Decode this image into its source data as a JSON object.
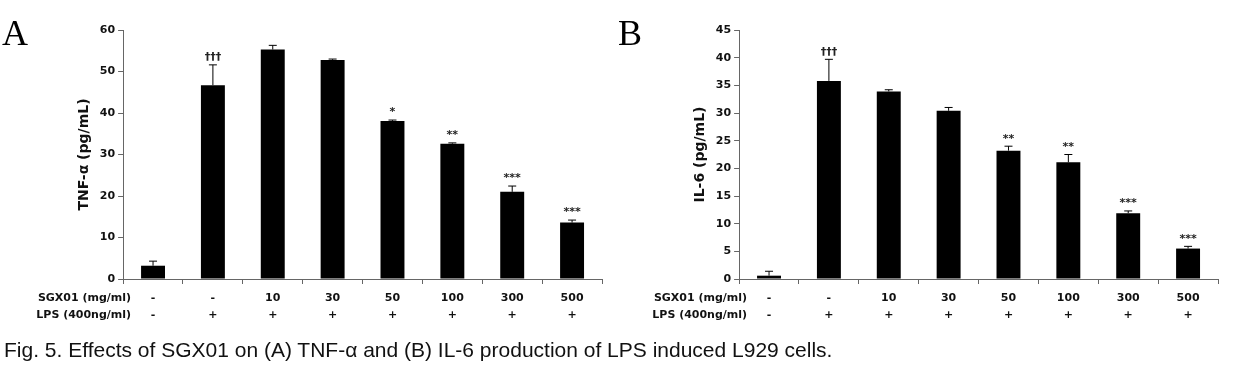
{
  "chart_data": [
    {
      "type": "bar",
      "title": "A",
      "ylabel": "TNF-α (pg/mL)",
      "xlabel": "SGX01 (mg/ml)\nLPS (400ng/ml)",
      "color": "#000000",
      "categories": [
        "-\n-",
        "-\n+",
        "10\n+",
        "30\n+",
        "50\n+",
        "100\n+",
        "300\n+",
        "500\n+"
      ],
      "values": [
        3.2,
        46.7,
        55.3,
        52.8,
        38.1,
        32.6,
        21.0,
        13.6
      ],
      "errors": [
        1.1,
        4.9,
        1.0,
        0.2,
        0.2,
        0.2,
        1.4,
        0.6
      ],
      "ylim": [
        0,
        60
      ],
      "yticks": [
        0,
        10,
        20,
        30,
        40,
        50,
        60
      ],
      "annotations": [
        {
          "text": "†††",
          "x": "-\n+",
          "y": 51.6
        },
        {
          "text": "*",
          "x": "50\n+",
          "y": 38.3
        },
        {
          "text": "**",
          "x": "100\n+",
          "y": 32.8
        },
        {
          "text": "***",
          "x": "300\n+",
          "y": 22.4
        },
        {
          "text": "***",
          "x": "500\n+",
          "y": 14.2
        },
        "Fig. 5. Effects of SGX01 on (A) TNF-α and (B) IL-6 production of LPS induced L929 cells."
      ]
    },
    {
      "type": "bar",
      "title": "B",
      "ylabel": "IL-6 (pg/mL)",
      "xlabel": "SGX01 (mg/ml)\nLPS (400ng/ml)",
      "color": "#000000",
      "categories": [
        "-\n-",
        "-\n+",
        "10\n+",
        "30\n+",
        "50\n+",
        "100\n+",
        "300\n+",
        "500\n+"
      ],
      "values": [
        0.6,
        35.8,
        33.9,
        30.4,
        23.2,
        21.1,
        11.9,
        5.5
      ],
      "errors": [
        0.8,
        3.9,
        0.3,
        0.6,
        0.8,
        1.4,
        0.4,
        0.4
      ],
      "ylim": [
        0,
        45
      ],
      "yticks": [
        0,
        5,
        10,
        15,
        20,
        25,
        30,
        35,
        40,
        45
      ],
      "annotations": [
        {
          "text": "†††",
          "x": "-\n+",
          "y": 39.7
        },
        {
          "text": "**",
          "x": "50\n+",
          "y": 24.0
        },
        {
          "text": "**",
          "x": "100\n+",
          "y": 22.5
        },
        {
          "text": "***",
          "x": "300\n+",
          "y": 12.3
        },
        {
          "text": "***",
          "x": "500\n+",
          "y": 5.9
        }
      ]
    }
  ]
}
